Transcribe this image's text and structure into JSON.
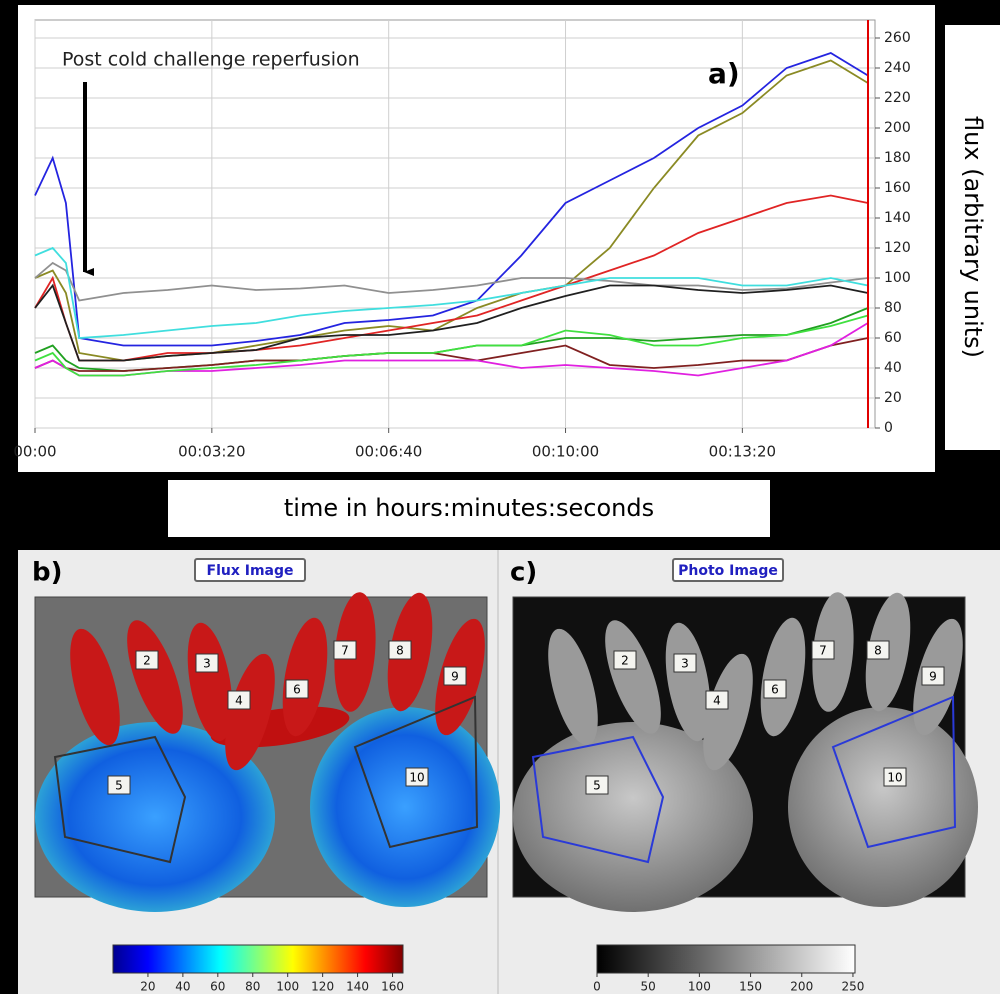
{
  "chart_data": [
    {
      "type": "line",
      "annotation": "Post cold challenge reperfusion",
      "panel_label": "a)",
      "y_label": "flux (arbitrary units)",
      "x_label": "time in hours:minutes:seconds",
      "x": [
        0,
        20,
        35,
        50,
        100,
        150,
        200,
        250,
        300,
        350,
        400,
        450,
        500,
        550,
        600,
        650,
        700,
        750,
        800,
        850,
        900,
        942
      ],
      "xlim": [
        0,
        950
      ],
      "xticks": [
        {
          "value": 0,
          "label": "00:00"
        },
        {
          "value": 200,
          "label": "00:03:20"
        },
        {
          "value": 400,
          "label": "00:06:40"
        },
        {
          "value": 600,
          "label": "00:10:00"
        },
        {
          "value": 800,
          "label": "00:13:20"
        }
      ],
      "ylim": [
        0,
        272
      ],
      "yticks": [
        0,
        20,
        40,
        60,
        80,
        100,
        120,
        140,
        160,
        180,
        200,
        220,
        240,
        260
      ],
      "grid": true,
      "series": [
        {
          "color": "#2424e0",
          "values": [
            155,
            180,
            150,
            60,
            55,
            55,
            55,
            58,
            62,
            70,
            72,
            75,
            85,
            115,
            150,
            165,
            180,
            200,
            215,
            240,
            250,
            235
          ]
        },
        {
          "color": "#8a8a24",
          "values": [
            100,
            105,
            90,
            50,
            45,
            48,
            50,
            55,
            60,
            65,
            68,
            65,
            80,
            90,
            95,
            120,
            160,
            195,
            210,
            235,
            245,
            230
          ]
        },
        {
          "color": "#e02424",
          "values": [
            80,
            100,
            70,
            45,
            45,
            50,
            50,
            52,
            55,
            60,
            65,
            70,
            75,
            85,
            95,
            105,
            115,
            130,
            140,
            150,
            155,
            150
          ]
        },
        {
          "color": "#909090",
          "values": [
            100,
            110,
            105,
            85,
            90,
            92,
            95,
            92,
            93,
            95,
            90,
            92,
            95,
            100,
            100,
            98,
            95,
            95,
            92,
            93,
            97,
            100
          ]
        },
        {
          "color": "#40dede",
          "values": [
            115,
            120,
            110,
            60,
            62,
            65,
            68,
            70,
            75,
            78,
            80,
            82,
            85,
            90,
            95,
            100,
            100,
            100,
            95,
            95,
            100,
            95
          ]
        },
        {
          "color": "#202020",
          "values": [
            80,
            95,
            70,
            45,
            45,
            48,
            50,
            52,
            60,
            62,
            62,
            65,
            70,
            80,
            88,
            95,
            95,
            92,
            90,
            92,
            95,
            90
          ]
        },
        {
          "color": "#20a020",
          "values": [
            50,
            55,
            45,
            40,
            38,
            40,
            42,
            45,
            45,
            48,
            50,
            50,
            55,
            55,
            60,
            60,
            58,
            60,
            62,
            62,
            70,
            80
          ]
        },
        {
          "color": "#802020",
          "values": [
            40,
            45,
            40,
            38,
            38,
            40,
            42,
            45,
            45,
            48,
            50,
            50,
            45,
            50,
            55,
            42,
            40,
            42,
            45,
            45,
            55,
            60
          ]
        },
        {
          "color": "#e020e0",
          "values": [
            40,
            45,
            40,
            35,
            35,
            38,
            38,
            40,
            42,
            45,
            45,
            45,
            45,
            40,
            42,
            40,
            38,
            35,
            40,
            45,
            55,
            70
          ]
        },
        {
          "color": "#40e040",
          "values": [
            45,
            50,
            40,
            35,
            35,
            38,
            40,
            42,
            45,
            48,
            50,
            50,
            55,
            55,
            65,
            62,
            55,
            55,
            60,
            62,
            68,
            75
          ]
        }
      ]
    },
    {
      "type": "colorbar",
      "colormap": "jet",
      "xlim": [
        0,
        166
      ],
      "xticks": [
        20,
        40,
        60,
        80,
        100,
        120,
        140,
        160
      ]
    },
    {
      "type": "colorbar",
      "colormap": "gray",
      "xlim": [
        0,
        252
      ],
      "xticks": [
        0,
        50,
        100,
        150,
        200,
        250
      ]
    }
  ],
  "images": [
    {
      "panel_label": "b)",
      "title": "Flux Image",
      "roi_labels": [
        "2",
        "3",
        "4",
        "5",
        "6",
        "7",
        "8",
        "9",
        "10"
      ]
    },
    {
      "panel_label": "c)",
      "title": "Photo Image",
      "roi_labels": [
        "2",
        "3",
        "4",
        "5",
        "6",
        "7",
        "8",
        "9",
        "10"
      ]
    }
  ]
}
